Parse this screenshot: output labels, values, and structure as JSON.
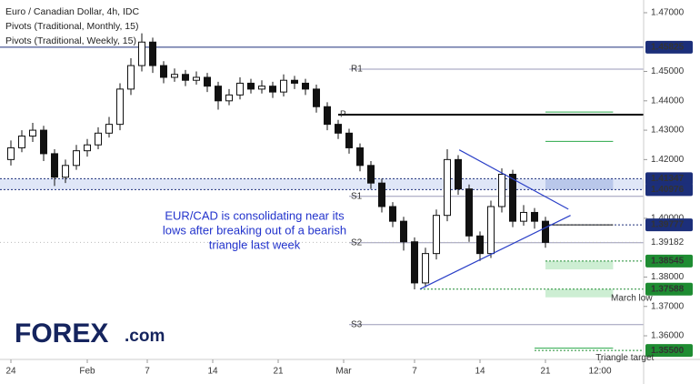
{
  "chart_data": {
    "type": "candlestick",
    "header": [
      "Euro / Canadian Dollar, 4h, IDC",
      "Pivots (Traditional, Monthly, 15)",
      "Pivots (Traditional, Weekly, 15)"
    ],
    "logo": [
      "FOREX",
      ".com"
    ],
    "x": [
      1,
      2,
      3,
      4,
      5,
      6,
      7,
      8,
      9,
      10,
      11,
      12,
      13,
      14,
      15,
      16,
      17,
      18,
      19,
      20,
      21,
      22,
      23,
      24,
      25,
      26,
      27,
      28,
      29,
      30,
      31,
      32,
      33,
      34,
      35,
      36,
      37,
      38,
      39,
      40,
      41,
      42,
      43,
      44,
      45,
      46,
      47,
      48,
      49,
      50
    ],
    "open": [
      1.42,
      1.424,
      1.428,
      1.43,
      1.422,
      1.414,
      1.418,
      1.423,
      1.425,
      1.429,
      1.432,
      1.444,
      1.452,
      1.46,
      1.452,
      1.448,
      1.449,
      1.447,
      1.448,
      1.445,
      1.44,
      1.442,
      1.446,
      1.444,
      1.445,
      1.443,
      1.447,
      1.446,
      1.444,
      1.438,
      1.432,
      1.429,
      1.424,
      1.418,
      1.412,
      1.404,
      1.399,
      1.392,
      1.378,
      1.388,
      1.401,
      1.42,
      1.41,
      1.394,
      1.388,
      1.404,
      1.415,
      1.399,
      1.402,
      1.399
    ],
    "high": [
      1.4265,
      1.43,
      1.4325,
      1.4315,
      1.4235,
      1.42,
      1.425,
      1.427,
      1.431,
      1.4345,
      1.446,
      1.4545,
      1.463,
      1.4615,
      1.4535,
      1.451,
      1.4505,
      1.45,
      1.4495,
      1.4465,
      1.444,
      1.448,
      1.4475,
      1.447,
      1.4465,
      1.449,
      1.4485,
      1.4475,
      1.4455,
      1.4395,
      1.4335,
      1.4305,
      1.4255,
      1.4195,
      1.4135,
      1.4055,
      1.4005,
      1.3935,
      1.39,
      1.403,
      1.4235,
      1.4215,
      1.4115,
      1.3955,
      1.406,
      1.417,
      1.4165,
      1.4045,
      1.4035,
      1.4005
    ],
    "low": [
      1.418,
      1.4225,
      1.426,
      1.4195,
      1.411,
      1.412,
      1.4165,
      1.421,
      1.4235,
      1.4275,
      1.43,
      1.442,
      1.45,
      1.4495,
      1.446,
      1.4465,
      1.445,
      1.4455,
      1.443,
      1.437,
      1.4385,
      1.4405,
      1.4425,
      1.4425,
      1.441,
      1.4415,
      1.444,
      1.442,
      1.436,
      1.43,
      1.427,
      1.422,
      1.416,
      1.41,
      1.402,
      1.397,
      1.389,
      1.3758,
      1.3765,
      1.386,
      1.399,
      1.408,
      1.392,
      1.3855,
      1.3865,
      1.402,
      1.397,
      1.3975,
      1.3965,
      1.39
    ],
    "close": [
      1.424,
      1.428,
      1.43,
      1.422,
      1.414,
      1.418,
      1.423,
      1.425,
      1.429,
      1.432,
      1.444,
      1.452,
      1.46,
      1.452,
      1.448,
      1.449,
      1.447,
      1.448,
      1.445,
      1.44,
      1.442,
      1.446,
      1.444,
      1.445,
      1.443,
      1.447,
      1.446,
      1.444,
      1.438,
      1.432,
      1.429,
      1.424,
      1.418,
      1.412,
      1.404,
      1.399,
      1.392,
      1.378,
      1.388,
      1.401,
      1.42,
      1.41,
      1.394,
      1.388,
      1.404,
      1.415,
      1.399,
      1.402,
      1.399,
      1.3918
    ],
    "up_color": "#ffffff",
    "down_color": "#111111",
    "wick_color": "#111111",
    "xlim": [
      0,
      59
    ],
    "xticks": [
      {
        "value": 1,
        "label": "24"
      },
      {
        "value": 8,
        "label": "Feb"
      },
      {
        "value": 13.5,
        "label": "7"
      },
      {
        "value": 19.5,
        "label": "14"
      },
      {
        "value": 25.5,
        "label": "21"
      },
      {
        "value": 31.5,
        "label": "Mar"
      },
      {
        "value": 38,
        "label": "7"
      },
      {
        "value": 44,
        "label": "14"
      },
      {
        "value": 50,
        "label": "21"
      },
      {
        "value": 55,
        "label": "12:00"
      }
    ],
    "ylim": [
      1.35195,
      1.47433
    ],
    "yticks": [
      {
        "value": 1.36,
        "label": "1.36000"
      },
      {
        "value": 1.37,
        "label": "1.37000"
      },
      {
        "value": 1.38,
        "label": "1.38000"
      },
      {
        "value": 1.4,
        "label": "1.40000"
      },
      {
        "value": 1.42,
        "label": "1.42000"
      },
      {
        "value": 1.43,
        "label": "1.43000"
      },
      {
        "value": 1.44,
        "label": "1.44000"
      },
      {
        "value": 1.45,
        "label": "1.45000"
      },
      {
        "value": 1.47,
        "label": "1.47000"
      }
    ],
    "pivots": [
      {
        "name": "R1",
        "value": 1.4508,
        "color": "#9a9ab8",
        "from": 32
      },
      {
        "name": "P",
        "value": 1.4353,
        "color": "#000000",
        "from": 31
      },
      {
        "name": "S1",
        "value": 1.4075,
        "color": "#9a9ab8",
        "from": 32
      },
      {
        "name": "S2",
        "value": 1.3917,
        "color": "#9a9ab8",
        "from": 32
      },
      {
        "name": "S3",
        "value": 1.3638,
        "color": "#9a9ab8",
        "from": 32
      }
    ],
    "price_levels": [
      {
        "value": 1.45825,
        "label": "1.45825",
        "color": "#1c2f7a",
        "from": 0,
        "style": "solid"
      },
      {
        "value": 1.41347,
        "label": "1.41347",
        "color": "#1c2f7a",
        "from": 0,
        "style": "dotted"
      },
      {
        "value": 1.40976,
        "label": "1.40976",
        "color": "#1c2f7a",
        "from": 0,
        "style": "dotted"
      },
      {
        "value": 1.39777,
        "label": "1.39777",
        "color": "#1c2f7a",
        "from": 50,
        "style": "dotted"
      },
      {
        "value": 1.38545,
        "label": "1.38545",
        "color": "#1e8c32",
        "from": 50,
        "style": "dotted"
      },
      {
        "value": 1.37588,
        "label": "1.37588",
        "color": "#1e8c32",
        "from": 38.5,
        "style": "dotted"
      },
      {
        "value": 1.355,
        "label": "1.35500",
        "color": "#1e8c32",
        "from": 49,
        "style": "dotted"
      }
    ],
    "last_price": {
      "value": 1.39182,
      "label": "1.39182"
    },
    "band_color": "#dfe6f7",
    "short_lines": [
      {
        "value": 1.4362,
        "from": 50,
        "to": 56.2,
        "color": "#2aa84a"
      },
      {
        "value": 1.4262,
        "from": 50,
        "to": 56.2,
        "color": "#2aa84a"
      },
      {
        "value": 1.39777,
        "from": 50,
        "to": 56.2,
        "color": "#111111"
      },
      {
        "value": 1.3558,
        "from": 49,
        "to": 56.2,
        "color": "#2aa84a"
      }
    ],
    "zones": [
      {
        "y": [
          1.3826,
          1.3855
        ],
        "x": [
          50,
          56.2
        ],
        "color": "#cdeed3"
      },
      {
        "y": [
          1.3731,
          1.3759
        ],
        "x": [
          50,
          56.2
        ],
        "color": "#cdeed3"
      },
      {
        "y": [
          1.40976,
          1.41347
        ],
        "x": [
          50,
          56.2
        ],
        "color": "#b9c7ea"
      }
    ],
    "trendlines": [
      {
        "x": [
          42.1,
          52.1
        ],
        "y": [
          1.4233,
          1.4031
        ],
        "color": "#2a3fc7"
      },
      {
        "x": [
          38.5,
          52.3
        ],
        "y": [
          1.3759,
          1.401
        ],
        "color": "#2a3fc7"
      }
    ],
    "annotation": [
      "EUR/CAD is consolidating near its",
      "lows after breaking out of a bearish",
      "triangle last week"
    ],
    "labels": [
      {
        "text": "March low",
        "x": 56,
        "y": 1.3728
      },
      {
        "text": "Triangle target",
        "x": 54.6,
        "y": 1.3525
      }
    ]
  }
}
